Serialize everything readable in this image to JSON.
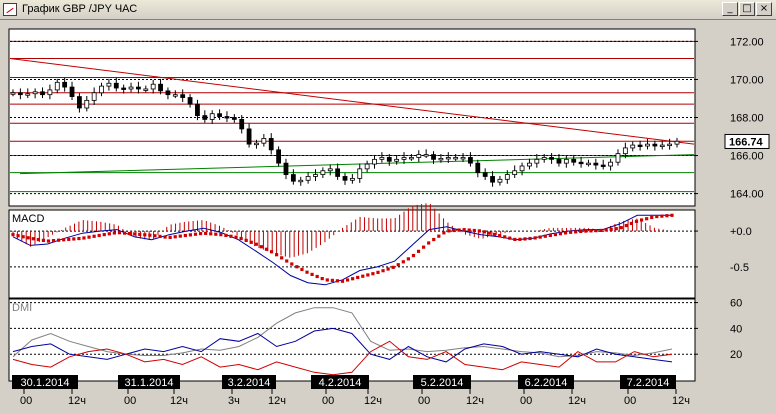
{
  "window": {
    "title": "График GBP /JPY  ЧАС",
    "minimize_glyph": "_",
    "maximize_glyph": "□",
    "close_glyph": "×"
  },
  "chart_data": {
    "type": "candlestick",
    "symbol": "GBP/JPY",
    "timeframe": "ЧАС",
    "price": {
      "ylim": [
        163.4,
        172.6
      ],
      "ticks": [
        172.0,
        170.0,
        168.0,
        166.0,
        164.0
      ],
      "tick_labels": [
        "172.00",
        "170.00",
        "168.00",
        "166.00",
        "164.00"
      ],
      "current_label": "166.74",
      "current": 166.74,
      "red_levels": [
        172.0,
        171.1,
        170.1,
        169.3,
        168.7,
        167.7,
        166.75
      ],
      "green_levels": [
        166.0,
        165.1,
        164.1
      ],
      "series": [
        169.3,
        169.2,
        169.25,
        169.35,
        169.2,
        169.45,
        169.85,
        169.6,
        169.1,
        168.5,
        168.9,
        169.3,
        169.65,
        169.8,
        169.55,
        169.5,
        169.6,
        169.5,
        169.5,
        169.75,
        169.4,
        169.2,
        169.2,
        169.05,
        168.7,
        168.1,
        167.9,
        168.2,
        168.05,
        168.0,
        167.9,
        167.4,
        166.6,
        166.65,
        166.9,
        166.3,
        165.6,
        165.0,
        164.65,
        164.7,
        164.9,
        165.0,
        165.2,
        165.3,
        164.9,
        164.7,
        164.8,
        165.3,
        165.55,
        165.8,
        165.9,
        165.7,
        165.8,
        165.9,
        165.9,
        166.05,
        166.05,
        165.8,
        165.85,
        165.9,
        165.9,
        165.9,
        165.6,
        165.1,
        164.9,
        164.6,
        164.75,
        165.0,
        165.2,
        165.45,
        165.6,
        165.8,
        165.9,
        165.8,
        165.6,
        165.8,
        165.65,
        165.6,
        165.6,
        165.5,
        165.45,
        165.65,
        166.1,
        166.4,
        166.55,
        166.5,
        166.6,
        166.5,
        166.55,
        166.6,
        166.75
      ]
    },
    "macd": {
      "label": "MACD",
      "ylim": [
        -0.92,
        0.28
      ],
      "ticks": [
        0.0,
        -0.5
      ],
      "tick_labels": [
        "+0.0",
        "-0.5"
      ],
      "main": [
        -0.08,
        -0.2,
        -0.18,
        -0.1,
        -0.03,
        0.0,
        0.02,
        -0.08,
        -0.12,
        -0.05,
        0.0,
        0.04,
        -0.02,
        -0.12,
        -0.28,
        -0.44,
        -0.62,
        -0.72,
        -0.75,
        -0.68,
        -0.55,
        -0.5,
        -0.42,
        -0.2,
        0.02,
        0.06,
        0.0,
        -0.05,
        -0.08,
        -0.12,
        -0.1,
        -0.04,
        0.0,
        0.02,
        0.02,
        0.1,
        0.22,
        0.22,
        0.22
      ],
      "signal": [
        -0.05,
        -0.1,
        -0.14,
        -0.12,
        -0.1,
        -0.06,
        -0.02,
        -0.04,
        -0.06,
        -0.09,
        -0.06,
        -0.03,
        -0.05,
        -0.09,
        -0.18,
        -0.3,
        -0.45,
        -0.58,
        -0.68,
        -0.7,
        -0.64,
        -0.58,
        -0.5,
        -0.36,
        -0.16,
        0.0,
        0.02,
        0.0,
        -0.06,
        -0.12,
        -0.1,
        -0.06,
        -0.02,
        0.0,
        0.01,
        0.04,
        0.14,
        0.2,
        0.22
      ]
    },
    "dmi": {
      "label": "DMI",
      "ylim": [
        0,
        62
      ],
      "ticks": [
        60,
        40,
        20
      ],
      "tick_labels": [
        "60",
        "40",
        "20"
      ],
      "adx": [
        18,
        31,
        36,
        30,
        26,
        22,
        20,
        19,
        19,
        21,
        24,
        23,
        26,
        33,
        44,
        52,
        56,
        56,
        52,
        30,
        23,
        24,
        22,
        23,
        25,
        26,
        24,
        22,
        21,
        18,
        19,
        22,
        21,
        19,
        21,
        24
      ],
      "plus_di": [
        22,
        26,
        28,
        20,
        18,
        16,
        20,
        24,
        22,
        26,
        22,
        32,
        30,
        36,
        26,
        30,
        38,
        40,
        36,
        20,
        16,
        26,
        18,
        14,
        24,
        28,
        26,
        20,
        22,
        20,
        18,
        24,
        20,
        18,
        16,
        14
      ],
      "minus_di": [
        16,
        12,
        10,
        18,
        22,
        24,
        20,
        14,
        16,
        12,
        18,
        10,
        12,
        8,
        14,
        10,
        6,
        4,
        6,
        22,
        30,
        18,
        16,
        22,
        12,
        10,
        8,
        14,
        12,
        10,
        22,
        14,
        14,
        22,
        18,
        20
      ]
    },
    "x_axis": {
      "date_labels": [
        "30.1.2014",
        "31.1.2014",
        "3.2.2014",
        "4.2.2014",
        "5.2.2014",
        "6.2.2014",
        "7.2.2014"
      ],
      "hour_labels": [
        "00",
        "12ч",
        "00",
        "12ч",
        "3ч",
        "12ч",
        "00",
        "12ч",
        "00",
        "12ч",
        "00",
        "12ч",
        "00",
        "12ч"
      ]
    },
    "grid": true
  }
}
